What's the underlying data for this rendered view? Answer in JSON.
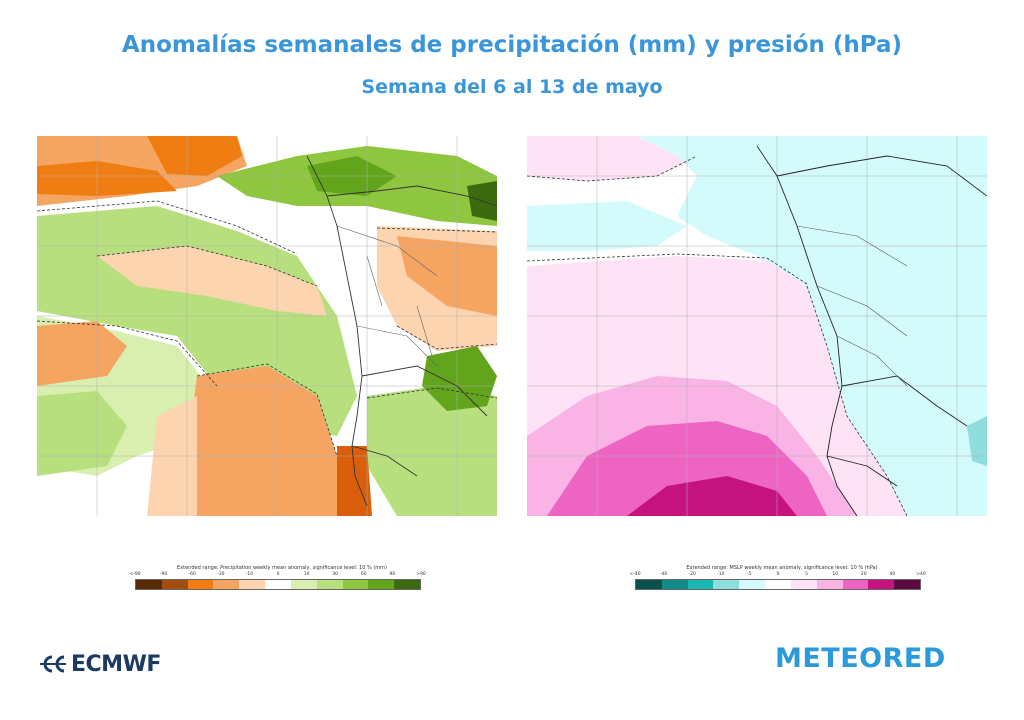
{
  "header": {
    "title": "Anomalías semanales de precipitación (mm) y presión (hPa)",
    "subtitle": "Semana del 6 al 13 de mayo"
  },
  "legends": {
    "precipitation": {
      "title": "Extended range: Precipitation weekly mean anomaly, significance level: 10 % (mm)",
      "ticks": [
        "<-90",
        "-90",
        "-60",
        "-30",
        "-10",
        "0",
        "10",
        "30",
        "60",
        "90",
        ">90"
      ],
      "colors": [
        "#5a2a06",
        "#a24d0c",
        "#f07d12",
        "#f5a461",
        "#fcd5b0",
        "#ffffff",
        "#d9efb0",
        "#b7df7e",
        "#8ec63f",
        "#62a41c",
        "#3c6b0f"
      ]
    },
    "pressure": {
      "title": "Extended range: MSLP weekly mean anomaly, significance level: 10 % (hPa)",
      "ticks": [
        "<-40",
        "-40",
        "-20",
        "-10",
        "-5",
        "0",
        "5",
        "10",
        "20",
        "40",
        ">40"
      ],
      "colors": [
        "#0b4f4f",
        "#128a86",
        "#19b6b4",
        "#8fdede",
        "#d4fbfb",
        "#ffffff",
        "#fde3f5",
        "#f9b3e4",
        "#ee64c3",
        "#c4137f",
        "#5a0a3e"
      ]
    }
  },
  "logos": {
    "ecmwf": "ECMWF",
    "meteored": "METEORED"
  },
  "maps": {
    "precipitation": {
      "field_colors": {
        "dry_light": "#fcd5b0",
        "dry": "#f5a461",
        "dry_strong": "#f07d12",
        "dry_extreme": "#d95f0a",
        "wet_light": "#d9efb0",
        "wet": "#b7df7e",
        "wet_strong": "#8ec63f",
        "wet_extreme": "#62a41c",
        "neutral": "#ffffff"
      }
    },
    "pressure": {
      "field_colors": {
        "neg_light": "#d4fbfb",
        "neg": "#8fdede",
        "pos_light": "#fde3f5",
        "pos": "#f9b3e4",
        "pos_strong": "#ee64c3",
        "pos_extreme": "#c4137f",
        "neutral": "#ffffff"
      }
    }
  }
}
